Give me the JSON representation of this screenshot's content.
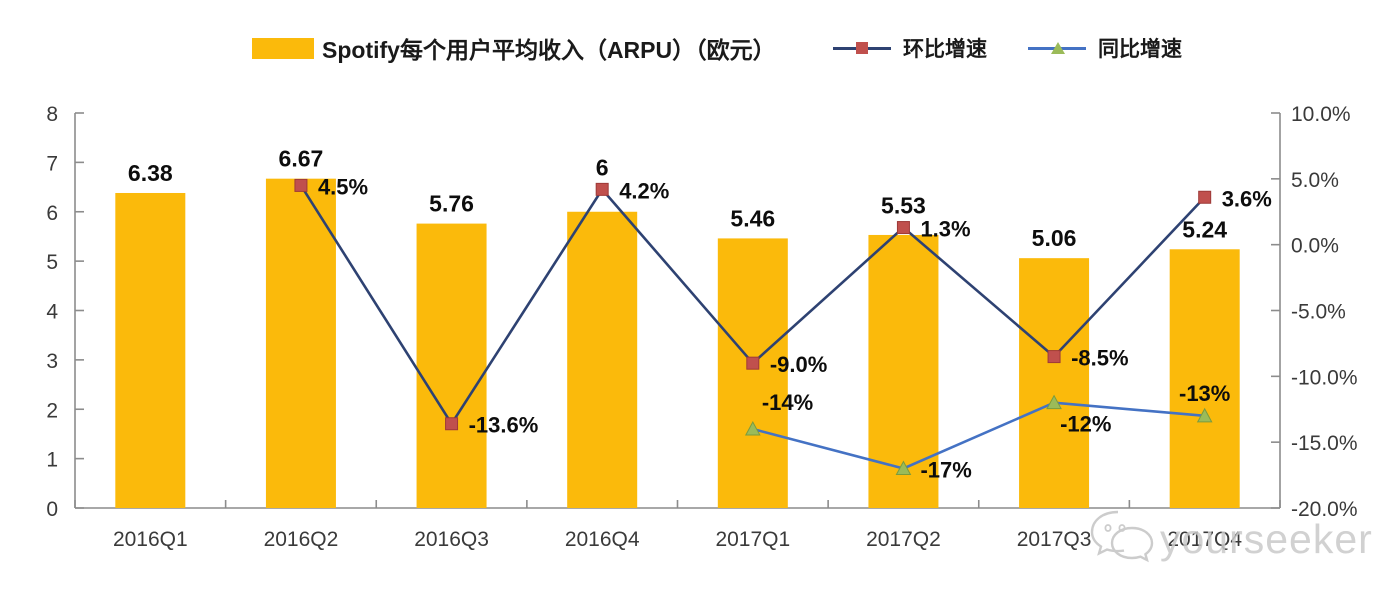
{
  "legend": [
    {
      "label": "Spotify每个用户平均收入（ARPU）（欧元）",
      "type": "bar"
    },
    {
      "label": "环比增速",
      "type": "line-square"
    },
    {
      "label": "同比增速",
      "type": "line-triangle"
    }
  ],
  "colors": {
    "bar": "#FBBA0B",
    "qoq_line": "#2E4272",
    "qoq_marker": "#C0504D",
    "yoy_line": "#4472C4",
    "yoy_marker": "#9BBB59",
    "axis_line": "#8C8C8C",
    "tick_text": "#3A3A3A",
    "data_label": "#0D0D0D",
    "watermark": "#C9C9C9"
  },
  "watermark": {
    "text": "yourseeker",
    "icon": "wechat-icon"
  },
  "chart_data": {
    "type": "bar",
    "subtype": "bar+line combo, dual axis",
    "categories": [
      "2016Q1",
      "2016Q2",
      "2016Q3",
      "2016Q4",
      "2017Q1",
      "2017Q2",
      "2017Q3",
      "2017Q4"
    ],
    "series": [
      {
        "name": "Spotify每个用户平均收入（ARPU）（欧元）",
        "type": "bar",
        "axis": "left",
        "values": [
          6.38,
          6.67,
          5.76,
          6,
          5.46,
          5.53,
          5.06,
          5.24
        ],
        "labels": [
          "6.38",
          "6.67",
          "5.76",
          "6",
          "5.46",
          "5.53",
          "5.06",
          "5.24"
        ]
      },
      {
        "name": "环比增速",
        "type": "line",
        "axis": "right",
        "values": [
          null,
          4.5,
          -13.6,
          4.2,
          -9.0,
          1.3,
          -8.5,
          3.6
        ],
        "labels": [
          null,
          "4.5%",
          "-13.6%",
          "4.2%",
          "-9.0%",
          "1.3%",
          "-8.5%",
          "3.6%"
        ],
        "label_positions": [
          null,
          "right",
          "right",
          "right",
          "right",
          "right",
          "right",
          "right"
        ]
      },
      {
        "name": "同比增速",
        "type": "line",
        "axis": "right",
        "values": [
          null,
          null,
          null,
          null,
          -14,
          -17,
          -12,
          -13
        ],
        "labels": [
          null,
          null,
          null,
          null,
          "-14%",
          "-17%",
          "-12%",
          "-13%"
        ],
        "label_positions": [
          null,
          null,
          null,
          null,
          "above-right",
          "right",
          "below",
          "above"
        ]
      }
    ],
    "left_axis": {
      "min": 0,
      "max": 8,
      "step": 1,
      "ticks": [
        "8",
        "7",
        "6",
        "5",
        "4",
        "3",
        "2",
        "1",
        "0"
      ]
    },
    "right_axis": {
      "min": -20,
      "max": 10,
      "step": 5,
      "ticks": [
        "10.0%",
        "5.0%",
        "0.0%",
        "-5.0%",
        "-10.0%",
        "-15.0%",
        "-20.0%"
      ]
    },
    "grid": false,
    "legend_position": "top"
  }
}
